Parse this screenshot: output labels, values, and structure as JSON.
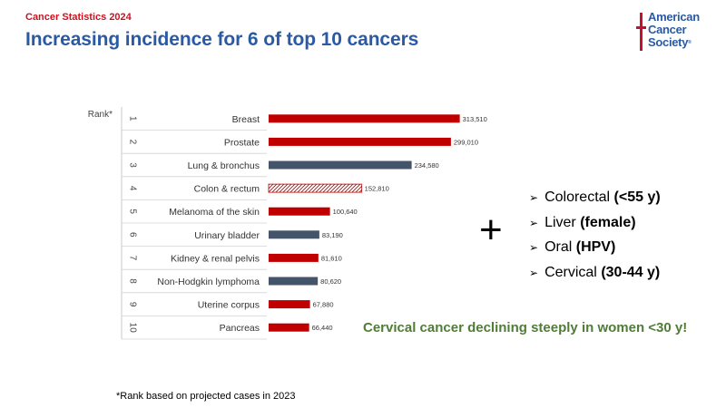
{
  "header": {
    "kicker": "Cancer Statistics 2024",
    "title": "Increasing incidence for 6 of top 10 cancers",
    "logo_lines": [
      "American",
      "Cancer",
      "Society"
    ],
    "logo_reg": "®"
  },
  "chart_data": {
    "type": "bar",
    "orientation": "horizontal",
    "rank_axis_label": "Rank*",
    "ranks": [
      "1",
      "2",
      "3",
      "4",
      "5",
      "6",
      "7",
      "8",
      "9",
      "10"
    ],
    "categories": [
      "Breast",
      "Prostate",
      "Lung & bronchus",
      "Colon & rectum",
      "Melanoma of the skin",
      "Urinary bladder",
      "Kidney & renal pelvis",
      "Non-Hodgkin lymphoma",
      "Uterine corpus",
      "Pancreas"
    ],
    "values": [
      313510,
      299010,
      234580,
      152810,
      100640,
      83190,
      81610,
      80620,
      67880,
      66440
    ],
    "value_labels": [
      "313,510",
      "299,010",
      "234,580",
      "152,810",
      "100,640",
      "83,190",
      "81,610",
      "80,620",
      "67,880",
      "66,440"
    ],
    "bar_styles": [
      "increasing",
      "increasing",
      "stable",
      "hatched",
      "increasing",
      "stable",
      "increasing",
      "stable",
      "increasing",
      "increasing"
    ],
    "colors": {
      "increasing": "#c00000",
      "stable": "#44546a",
      "hatched": "#c00000"
    },
    "xlim": [
      0,
      320000
    ],
    "grid": false
  },
  "footnote": "*Rank based on projected cases in 2023",
  "plus_symbol": "+",
  "trends": [
    {
      "name": "Colorectal",
      "detail": "(<55 y)"
    },
    {
      "name": "Liver",
      "detail": "(female)"
    },
    {
      "name": "Oral",
      "detail": "(HPV)"
    },
    {
      "name": "Cervical",
      "detail": "(30-44 y)"
    }
  ],
  "callout": "Cervical cancer declining steeply in women <30 y!"
}
